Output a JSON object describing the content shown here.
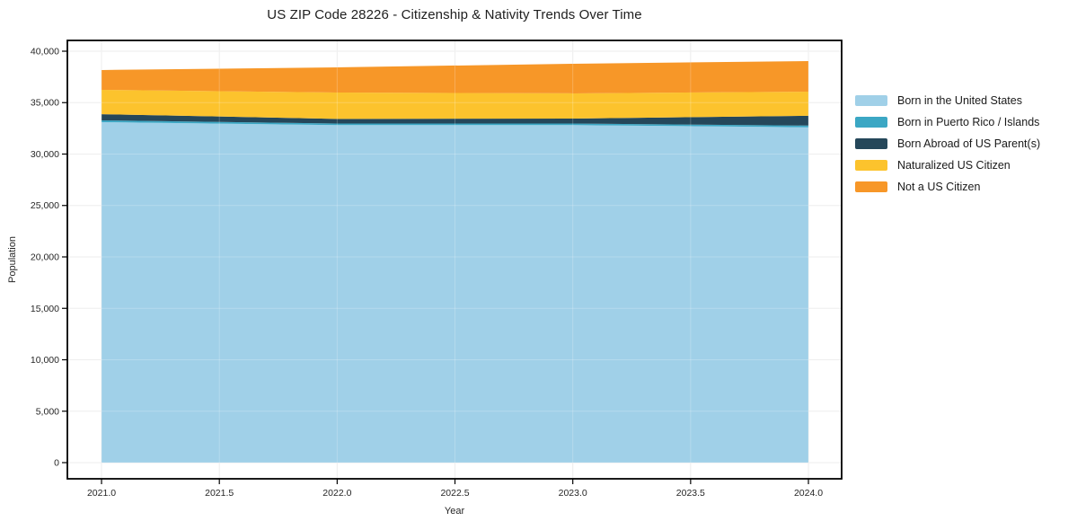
{
  "chart_data": {
    "type": "area",
    "stacked": true,
    "title": "US ZIP Code 28226 - Citizenship & Nativity Trends Over Time",
    "xlabel": "Year",
    "ylabel": "Population",
    "x": [
      2021,
      2022,
      2023,
      2024
    ],
    "series": [
      {
        "name": "Born in the United States",
        "color": "#a0d0e8",
        "values": [
          33100,
          32820,
          32820,
          32600
        ]
      },
      {
        "name": "Born in Puerto Rico / Islands",
        "color": "#3ba7c4",
        "values": [
          180,
          150,
          150,
          170
        ]
      },
      {
        "name": "Born Abroad of US Parent(s)",
        "color": "#25475a",
        "values": [
          600,
          450,
          480,
          950
        ]
      },
      {
        "name": "Naturalized US Citizen",
        "color": "#fcc32d",
        "values": [
          2370,
          2560,
          2450,
          2350
        ]
      },
      {
        "name": "Not a US Citizen",
        "color": "#f79728",
        "values": [
          1920,
          2450,
          2880,
          2970
        ]
      }
    ],
    "xlim": [
      2020.855,
      2024.141
    ],
    "ylim": [
      -1572,
      41048
    ],
    "x_tick_values": [
      2021.0,
      2021.5,
      2022.0,
      2022.5,
      2023.0,
      2023.5,
      2024.0
    ],
    "x_tick_labels": [
      "2021.0",
      "2021.5",
      "2022.0",
      "2022.5",
      "2023.0",
      "2023.5",
      "2024.0"
    ],
    "y_tick_values": [
      0,
      5000,
      10000,
      15000,
      20000,
      25000,
      30000,
      35000,
      40000
    ],
    "y_tick_labels": [
      "0",
      "5,000",
      "10,000",
      "15,000",
      "20,000",
      "25,000",
      "30,000",
      "35,000",
      "40,000"
    ],
    "grid": true,
    "legend_position": "right",
    "colors": {
      "spine": "#000000",
      "grid": "#e9e9e9",
      "tick_label": "#262626",
      "background": "#ffffff"
    }
  }
}
